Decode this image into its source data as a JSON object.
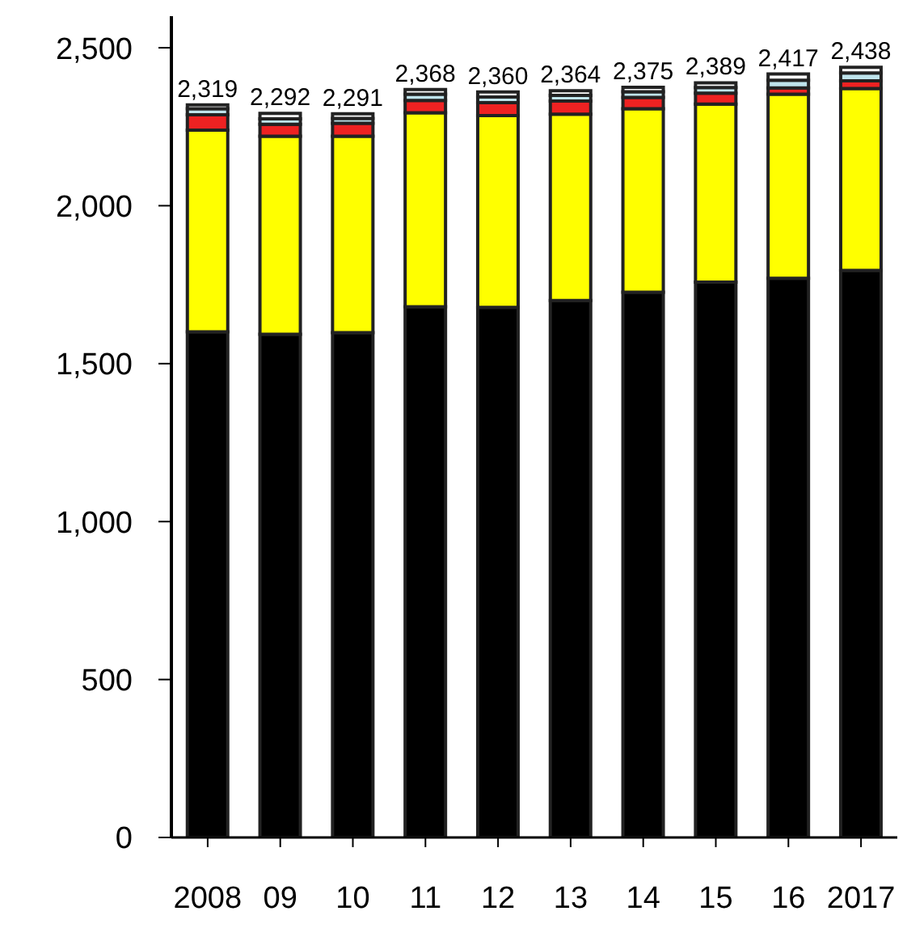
{
  "chart_data": {
    "type": "bar",
    "stacked": true,
    "categories": [
      "2008",
      "09",
      "10",
      "11",
      "12",
      "13",
      "14",
      "15",
      "16",
      "2017"
    ],
    "series": [
      {
        "color": "#000000",
        "values": [
          1601,
          1593,
          1598,
          1680,
          1678,
          1700,
          1726,
          1758,
          1770,
          1795
        ]
      },
      {
        "color": "#ffff00",
        "values": [
          638,
          627,
          622,
          614,
          607,
          590,
          581,
          564,
          583,
          576
        ]
      },
      {
        "color": "#ee2222",
        "values": [
          49,
          38,
          41,
          39,
          41,
          41,
          36,
          34,
          20,
          24
        ]
      },
      {
        "color": "#bfe4ec",
        "values": [
          19,
          17,
          15,
          20,
          18,
          18,
          18,
          18,
          24,
          25
        ]
      },
      {
        "color": "#ffffff",
        "values": [
          12,
          17,
          15,
          15,
          16,
          15,
          14,
          15,
          20,
          18
        ]
      }
    ],
    "totals": [
      "2,319",
      "2,292",
      "2,291",
      "2,368",
      "2,360",
      "2,364",
      "2,375",
      "2,389",
      "2,417",
      "2,438"
    ],
    "ylim": [
      0,
      2600
    ],
    "yticks": [
      0,
      500,
      {
        "value": 1000,
        "label": "1,000"
      },
      {
        "value": 1500,
        "label": "1,500"
      },
      {
        "value": 2000,
        "label": "2,000"
      },
      {
        "value": 2500,
        "label": "2,500"
      }
    ],
    "grid": false,
    "legend": false
  }
}
